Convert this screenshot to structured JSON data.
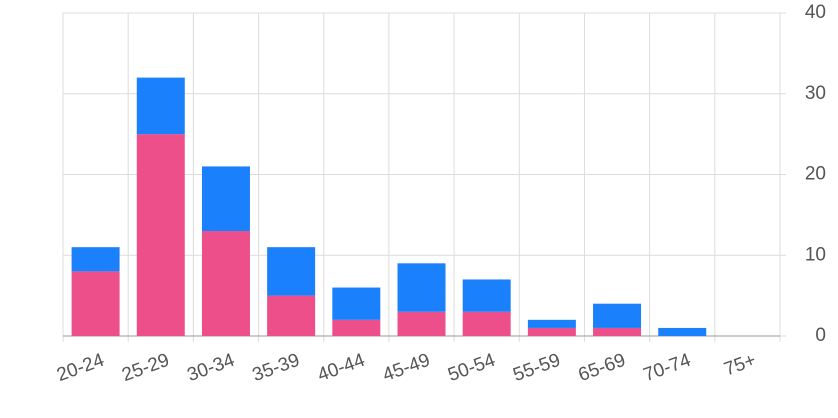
{
  "chart_data": {
    "type": "stacked-bar",
    "categories": [
      "20-24",
      "25-29",
      "30-34",
      "35-39",
      "40-44",
      "45-49",
      "50-54",
      "55-59",
      "65-69",
      "70-74",
      "75+"
    ],
    "series": [
      {
        "color": "#ec4f8a",
        "values": [
          8,
          25,
          13,
          5,
          2,
          3,
          3,
          1,
          1,
          0,
          0
        ]
      },
      {
        "color": "#1a80fb",
        "values": [
          3,
          7,
          8,
          6,
          4,
          6,
          4,
          1,
          3,
          1,
          0
        ]
      }
    ],
    "ylim": [
      0,
      40
    ],
    "yticks": [
      0,
      10,
      20,
      30,
      40
    ],
    "grid": true,
    "y_axis_side": "right"
  }
}
